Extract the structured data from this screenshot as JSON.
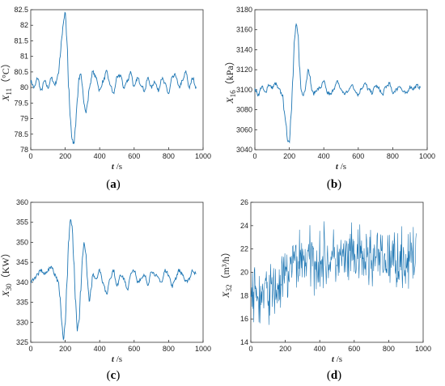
{
  "chart_data": [
    {
      "type": "line",
      "panel_label": "a",
      "xlabel_var": "t",
      "xlabel_unit": " /s",
      "ylabel_var": "X",
      "ylabel_sub": "11",
      "ylabel_unit": "（°C）",
      "xlim": [
        0,
        1000
      ],
      "ylim": [
        78,
        82.5
      ],
      "xticks": [
        0,
        200,
        400,
        600,
        800,
        1000
      ],
      "yticks": [
        78,
        78.5,
        79,
        79.5,
        80,
        80.5,
        81,
        81.5,
        82,
        82.5
      ],
      "color": "#1f77b4",
      "series": [
        {
          "x": [
            0,
            20,
            40,
            60,
            80,
            100,
            120,
            140,
            160,
            170,
            180,
            190,
            200,
            210,
            220,
            230,
            240,
            250,
            260,
            270,
            280,
            290,
            300,
            310,
            320,
            330,
            340,
            360,
            380,
            400,
            420,
            440,
            460,
            480,
            500,
            520,
            540,
            560,
            580,
            600,
            620,
            640,
            660,
            680,
            700,
            720,
            740,
            760,
            780,
            800,
            820,
            840,
            860,
            880,
            900,
            920,
            940,
            960
          ],
          "y": [
            80.2,
            80.0,
            80.3,
            79.9,
            80.2,
            80.0,
            80.3,
            80.1,
            80.4,
            81.0,
            81.6,
            82.1,
            82.4,
            81.5,
            80.0,
            79.0,
            78.3,
            78.2,
            78.8,
            79.6,
            80.3,
            80.4,
            80.0,
            79.5,
            79.2,
            79.5,
            80.0,
            80.5,
            80.3,
            79.9,
            80.2,
            80.5,
            80.1,
            79.8,
            80.3,
            80.4,
            80.0,
            80.2,
            80.5,
            80.0,
            80.3,
            80.1,
            79.9,
            80.3,
            80.0,
            80.2,
            79.9,
            80.3,
            80.1,
            79.8,
            80.3,
            80.4,
            80.0,
            80.2,
            80.5,
            80.0,
            80.3,
            80.0
          ]
        }
      ]
    },
    {
      "type": "line",
      "panel_label": "b",
      "xlabel_var": "t",
      "xlabel_unit": " /s",
      "ylabel_var": "X",
      "ylabel_sub": "16",
      "ylabel_unit": "（kPa）",
      "xlim": [
        0,
        1000
      ],
      "ylim": [
        3040,
        3180
      ],
      "xticks": [
        0,
        200,
        400,
        600,
        800,
        1000
      ],
      "yticks": [
        3040,
        3060,
        3080,
        3100,
        3120,
        3140,
        3160,
        3180
      ],
      "color": "#1f77b4",
      "series": [
        {
          "x": [
            0,
            20,
            40,
            60,
            80,
            100,
            120,
            140,
            160,
            170,
            180,
            190,
            200,
            210,
            220,
            230,
            240,
            250,
            260,
            270,
            280,
            290,
            300,
            310,
            320,
            330,
            340,
            360,
            380,
            400,
            420,
            440,
            460,
            480,
            500,
            520,
            540,
            560,
            580,
            600,
            620,
            640,
            660,
            680,
            700,
            720,
            740,
            760,
            780,
            800,
            820,
            840,
            860,
            880,
            900,
            920,
            940,
            960
          ],
          "y": [
            3100,
            3095,
            3103,
            3097,
            3105,
            3102,
            3106,
            3100,
            3095,
            3080,
            3065,
            3050,
            3048,
            3075,
            3110,
            3150,
            3166,
            3155,
            3120,
            3098,
            3094,
            3100,
            3110,
            3122,
            3112,
            3100,
            3096,
            3100,
            3102,
            3108,
            3097,
            3095,
            3102,
            3108,
            3100,
            3096,
            3098,
            3105,
            3100,
            3095,
            3102,
            3106,
            3100,
            3097,
            3104,
            3101,
            3095,
            3103,
            3106,
            3097,
            3100,
            3104,
            3098,
            3096,
            3103,
            3101,
            3104,
            3102
          ]
        }
      ]
    },
    {
      "type": "line",
      "panel_label": "c",
      "xlabel_var": "t",
      "xlabel_unit": " /s",
      "ylabel_var": "X",
      "ylabel_sub": "30",
      "ylabel_unit": "（KW）",
      "xlim": [
        0,
        1000
      ],
      "ylim": [
        325,
        360
      ],
      "xticks": [
        0,
        200,
        400,
        600,
        800,
        1000
      ],
      "yticks": [
        325,
        330,
        335,
        340,
        345,
        350,
        355,
        360
      ],
      "color": "#1f77b4",
      "series": [
        {
          "x": [
            0,
            20,
            40,
            60,
            80,
            100,
            120,
            140,
            160,
            170,
            180,
            190,
            200,
            210,
            220,
            230,
            240,
            250,
            260,
            270,
            280,
            290,
            300,
            310,
            320,
            330,
            340,
            350,
            360,
            380,
            400,
            420,
            440,
            460,
            480,
            500,
            520,
            540,
            560,
            580,
            600,
            620,
            640,
            660,
            680,
            700,
            720,
            740,
            760,
            780,
            800,
            820,
            840,
            860,
            880,
            900,
            920,
            940,
            960
          ],
          "y": [
            340,
            341,
            342,
            343,
            342,
            343,
            344,
            342,
            340,
            336,
            330,
            326,
            330,
            340,
            350,
            356,
            354,
            345,
            335,
            328,
            330,
            338,
            346,
            350,
            347,
            340,
            335,
            338,
            342,
            341,
            343,
            340,
            337,
            341,
            343,
            339,
            342,
            341,
            338,
            342,
            343,
            340,
            341,
            342,
            339,
            343,
            342,
            341,
            340,
            343,
            342,
            339,
            341,
            343,
            342,
            340,
            341,
            343,
            342
          ]
        }
      ]
    },
    {
      "type": "line",
      "panel_label": "d",
      "xlabel_var": "t",
      "xlabel_unit": " /s",
      "ylabel_var": "X",
      "ylabel_sub": "32",
      "ylabel_unit": "（m³/h）",
      "xlim": [
        0,
        1000
      ],
      "ylim": [
        14,
        26
      ],
      "xticks": [
        0,
        200,
        400,
        600,
        800,
        1000
      ],
      "yticks": [
        14,
        16,
        18,
        20,
        22,
        24,
        26
      ],
      "color": "#1f77b4",
      "noisy": true,
      "series": [
        {
          "x": [
            0,
            50,
            100,
            150,
            200,
            250,
            300,
            350,
            400,
            450,
            500,
            550,
            600,
            650,
            700,
            750,
            800,
            850,
            900,
            960
          ],
          "y": [
            18.0,
            17.8,
            18.3,
            18.5,
            19.5,
            20.8,
            21.3,
            21.0,
            21.2,
            21.0,
            21.1,
            21.0,
            21.2,
            21.0,
            21.3,
            21.1,
            21.0,
            21.2,
            21.0,
            21.1
          ],
          "spread": [
            2.0,
            2.2,
            2.0,
            2.1,
            2.0,
            2.4,
            2.2,
            2.1,
            2.2,
            2.0,
            2.1,
            2.0,
            2.2,
            2.1,
            2.2,
            2.0,
            2.1,
            2.0,
            2.1,
            2.0
          ],
          "min": 14.5,
          "max": 25.6
        }
      ]
    }
  ]
}
